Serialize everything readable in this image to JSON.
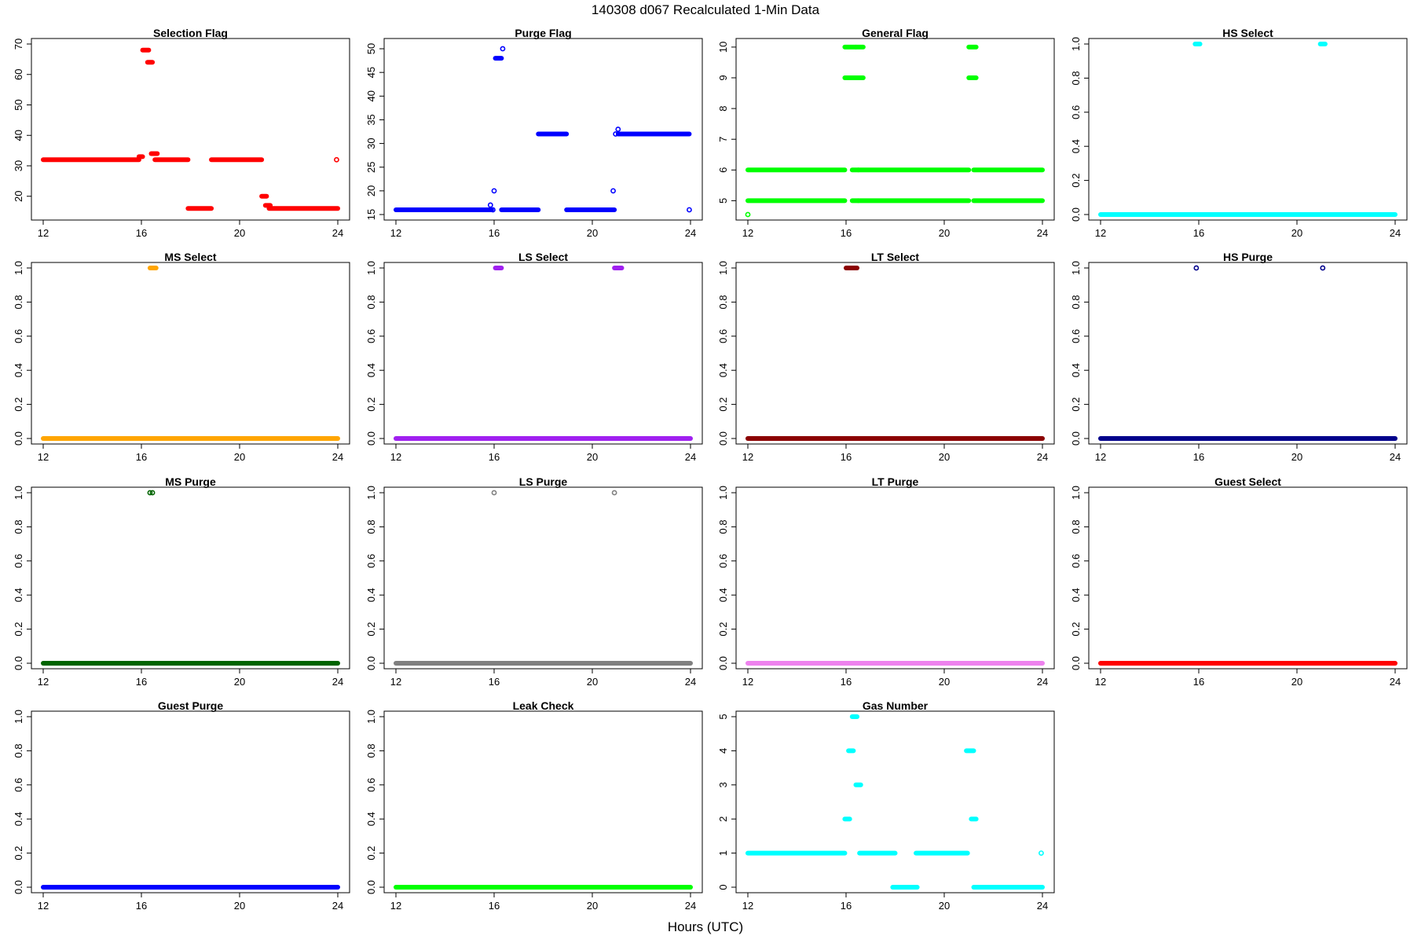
{
  "figure": {
    "title": "140308   d067   Recalculated 1-Min Data",
    "xlabel": "Hours (UTC)"
  },
  "chart_data": [
    {
      "type": "scatter",
      "title": "Selection Flag",
      "color": "#ff0000",
      "xlim": [
        12,
        24
      ],
      "ylim": [
        14,
        70
      ],
      "yticks": [
        20,
        30,
        40,
        50,
        60,
        70
      ],
      "xticks": [
        12,
        16,
        20,
        24
      ],
      "segments": [
        [
          12,
          15.9,
          32
        ],
        [
          15.9,
          16.05,
          33
        ],
        [
          16.05,
          16.3,
          68
        ],
        [
          16.25,
          16.45,
          64
        ],
        [
          16.4,
          16.65,
          34
        ],
        [
          16.55,
          17.9,
          32
        ],
        [
          17.9,
          18.85,
          16
        ],
        [
          18.85,
          20.9,
          32
        ],
        [
          20.9,
          21.1,
          20
        ],
        [
          21.05,
          21.25,
          17
        ],
        [
          21.2,
          24,
          16
        ]
      ],
      "points": [
        [
          23.95,
          32
        ]
      ]
    },
    {
      "type": "scatter",
      "title": "Purge Flag",
      "color": "#0000ff",
      "xlim": [
        12,
        24
      ],
      "ylim": [
        15,
        51
      ],
      "yticks": [
        15,
        20,
        25,
        30,
        35,
        40,
        45,
        50
      ],
      "xticks": [
        12,
        16,
        20,
        24
      ],
      "segments": [
        [
          12,
          15.9,
          16
        ],
        [
          16.05,
          16.3,
          48
        ],
        [
          16.3,
          17.8,
          16
        ],
        [
          17.8,
          18.95,
          32
        ],
        [
          18.95,
          20.9,
          16
        ],
        [
          21.05,
          23.95,
          32
        ]
      ],
      "points": [
        [
          15.85,
          17
        ],
        [
          15.95,
          16
        ],
        [
          16.0,
          20
        ],
        [
          16.35,
          50
        ],
        [
          20.85,
          20
        ],
        [
          20.95,
          32
        ],
        [
          21.05,
          33
        ],
        [
          23.95,
          16
        ]
      ]
    },
    {
      "type": "scatter",
      "title": "General Flag",
      "color": "#00ff00",
      "xlim": [
        12,
        24
      ],
      "ylim": [
        4.55,
        10.1
      ],
      "yticks": [
        5,
        6,
        7,
        8,
        9,
        10
      ],
      "xticks": [
        12,
        16,
        20,
        24
      ],
      "segments": [
        [
          12,
          15.95,
          6
        ],
        [
          12,
          15.95,
          5
        ],
        [
          15.95,
          16.4,
          10
        ],
        [
          15.95,
          16.4,
          9
        ],
        [
          16.4,
          16.7,
          10
        ],
        [
          16.4,
          16.7,
          9
        ],
        [
          16.25,
          16.5,
          6
        ],
        [
          16.25,
          16.5,
          5
        ],
        [
          16.5,
          21.0,
          6
        ],
        [
          16.5,
          21.0,
          5
        ],
        [
          21.0,
          21.3,
          10
        ],
        [
          21.0,
          21.3,
          9
        ],
        [
          21.2,
          24,
          6
        ],
        [
          21.2,
          24,
          5
        ]
      ],
      "points": [
        [
          12,
          4.55
        ]
      ]
    },
    {
      "type": "scatter",
      "title": "HS Select",
      "color": "#00ffff",
      "xlim": [
        12,
        24
      ],
      "ylim": [
        0,
        1
      ],
      "yticks": [
        0.0,
        0.2,
        0.4,
        0.6,
        0.8,
        1.0
      ],
      "xticks": [
        12,
        16,
        20,
        24
      ],
      "segments": [
        [
          12,
          24,
          0
        ],
        [
          15.85,
          16.05,
          1
        ],
        [
          20.95,
          21.15,
          1
        ]
      ],
      "points": []
    },
    {
      "type": "scatter",
      "title": "MS Select",
      "color": "#ffa500",
      "xlim": [
        12,
        24
      ],
      "ylim": [
        0,
        1
      ],
      "yticks": [
        0.0,
        0.2,
        0.4,
        0.6,
        0.8,
        1.0
      ],
      "xticks": [
        12,
        16,
        20,
        24
      ],
      "segments": [
        [
          12,
          24,
          0
        ],
        [
          16.35,
          16.6,
          1
        ]
      ],
      "points": []
    },
    {
      "type": "scatter",
      "title": "LS Select",
      "color": "#a020f0",
      "xlim": [
        12,
        24
      ],
      "ylim": [
        0,
        1
      ],
      "yticks": [
        0.0,
        0.2,
        0.4,
        0.6,
        0.8,
        1.0
      ],
      "xticks": [
        12,
        16,
        20,
        24
      ],
      "segments": [
        [
          12,
          24,
          0
        ],
        [
          16.05,
          16.3,
          1
        ],
        [
          20.9,
          21.2,
          1
        ]
      ],
      "points": []
    },
    {
      "type": "scatter",
      "title": "LT Select",
      "color": "#8b0000",
      "xlim": [
        12,
        24
      ],
      "ylim": [
        0,
        1
      ],
      "yticks": [
        0.0,
        0.2,
        0.4,
        0.6,
        0.8,
        1.0
      ],
      "xticks": [
        12,
        16,
        20,
        24
      ],
      "segments": [
        [
          12,
          24,
          0
        ],
        [
          16.0,
          16.45,
          1
        ]
      ],
      "points": []
    },
    {
      "type": "scatter",
      "title": "HS Purge",
      "color": "#00008b",
      "xlim": [
        12,
        24
      ],
      "ylim": [
        0,
        1
      ],
      "yticks": [
        0.0,
        0.2,
        0.4,
        0.6,
        0.8,
        1.0
      ],
      "xticks": [
        12,
        16,
        20,
        24
      ],
      "segments": [
        [
          12,
          24,
          0
        ]
      ],
      "points": [
        [
          15.9,
          1
        ],
        [
          21.05,
          1
        ]
      ]
    },
    {
      "type": "scatter",
      "title": "MS Purge",
      "color": "#006400",
      "xlim": [
        12,
        24
      ],
      "ylim": [
        0,
        1
      ],
      "yticks": [
        0.0,
        0.2,
        0.4,
        0.6,
        0.8,
        1.0
      ],
      "xticks": [
        12,
        16,
        20,
        24
      ],
      "segments": [
        [
          12,
          24,
          0
        ]
      ],
      "points": [
        [
          16.35,
          1
        ],
        [
          16.45,
          1
        ]
      ]
    },
    {
      "type": "scatter",
      "title": "LS Purge",
      "color": "#808080",
      "xlim": [
        12,
        24
      ],
      "ylim": [
        0,
        1
      ],
      "yticks": [
        0.0,
        0.2,
        0.4,
        0.6,
        0.8,
        1.0
      ],
      "xticks": [
        12,
        16,
        20,
        24
      ],
      "segments": [
        [
          12,
          24,
          0
        ]
      ],
      "points": [
        [
          16.0,
          1
        ],
        [
          20.9,
          1
        ]
      ]
    },
    {
      "type": "scatter",
      "title": "LT Purge",
      "color": "#ee82ee",
      "xlim": [
        12,
        24
      ],
      "ylim": [
        0,
        1
      ],
      "yticks": [
        0.0,
        0.2,
        0.4,
        0.6,
        0.8,
        1.0
      ],
      "xticks": [
        12,
        16,
        20,
        24
      ],
      "segments": [
        [
          12,
          24,
          0
        ]
      ],
      "points": []
    },
    {
      "type": "scatter",
      "title": "Guest Select",
      "color": "#ff0000",
      "xlim": [
        12,
        24
      ],
      "ylim": [
        0,
        1
      ],
      "yticks": [
        0.0,
        0.2,
        0.4,
        0.6,
        0.8,
        1.0
      ],
      "xticks": [
        12,
        16,
        20,
        24
      ],
      "segments": [
        [
          12,
          24,
          0
        ]
      ],
      "points": []
    },
    {
      "type": "scatter",
      "title": "Guest Purge",
      "color": "#0000ff",
      "xlim": [
        12,
        24
      ],
      "ylim": [
        0,
        1
      ],
      "yticks": [
        0.0,
        0.2,
        0.4,
        0.6,
        0.8,
        1.0
      ],
      "xticks": [
        12,
        16,
        20,
        24
      ],
      "segments": [
        [
          12,
          24,
          0
        ]
      ],
      "points": []
    },
    {
      "type": "scatter",
      "title": "Leak Check",
      "color": "#00ff00",
      "xlim": [
        12,
        24
      ],
      "ylim": [
        0,
        1
      ],
      "yticks": [
        0.0,
        0.2,
        0.4,
        0.6,
        0.8,
        1.0
      ],
      "xticks": [
        12,
        16,
        20,
        24
      ],
      "segments": [
        [
          12,
          24,
          0
        ]
      ],
      "points": []
    },
    {
      "type": "scatter",
      "title": "Gas Number",
      "color": "#00ffff",
      "xlim": [
        12,
        24
      ],
      "ylim": [
        0,
        5
      ],
      "yticks": [
        0,
        1,
        2,
        3,
        4,
        5
      ],
      "xticks": [
        12,
        16,
        20,
        24
      ],
      "segments": [
        [
          12,
          15.95,
          1
        ],
        [
          15.95,
          16.15,
          2
        ],
        [
          16.1,
          16.3,
          4
        ],
        [
          16.25,
          16.45,
          5
        ],
        [
          16.4,
          16.6,
          3
        ],
        [
          16.55,
          18.0,
          1
        ],
        [
          17.9,
          18.9,
          0
        ],
        [
          18.85,
          20.95,
          1
        ],
        [
          20.9,
          21.2,
          4
        ],
        [
          21.1,
          21.3,
          2
        ],
        [
          21.2,
          24,
          0
        ]
      ],
      "points": [
        [
          23.95,
          1
        ]
      ]
    }
  ]
}
